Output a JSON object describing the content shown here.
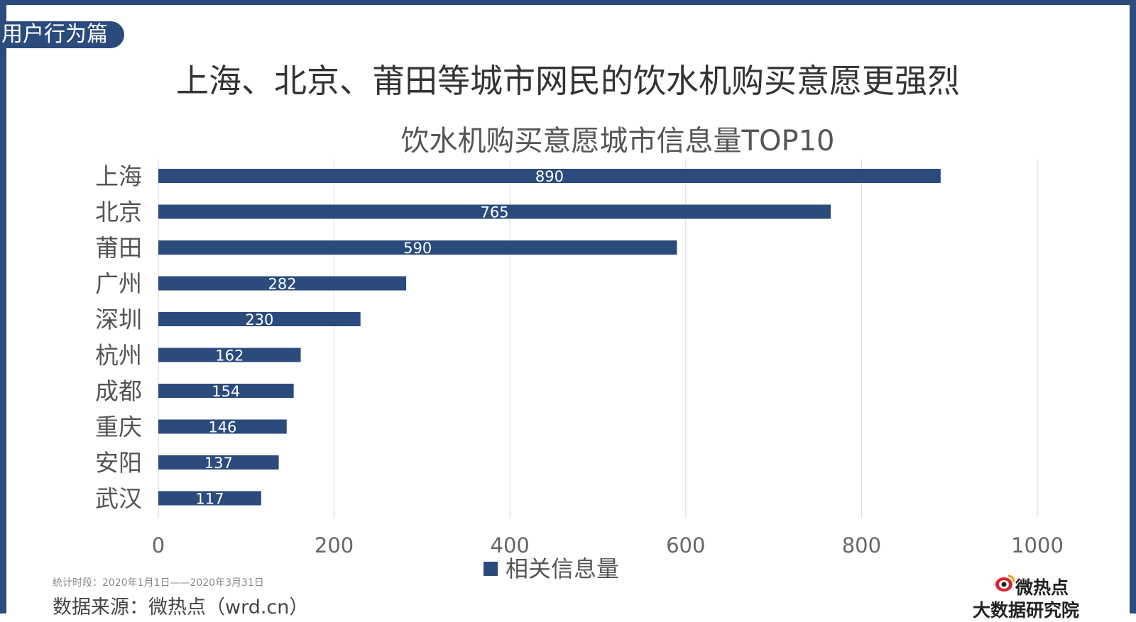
{
  "section_tab": "用户行为篇",
  "page_title": "上海、北京、莆田等城市网民的饮水机购买意愿更强烈",
  "chart_data": {
    "type": "bar",
    "orientation": "horizontal",
    "title": "饮水机购买意愿城市信息量TOP10",
    "categories": [
      "上海",
      "北京",
      "莆田",
      "广州",
      "深圳",
      "杭州",
      "成都",
      "重庆",
      "安阳",
      "武汉"
    ],
    "series": [
      {
        "name": "相关信息量",
        "values": [
          890,
          765,
          590,
          282,
          230,
          162,
          154,
          146,
          137,
          117
        ]
      }
    ],
    "xlim": [
      0,
      1000
    ],
    "xticks": [
      0,
      200,
      400,
      600,
      800,
      1000
    ],
    "grid": "vertical",
    "legend": "bottom",
    "data_labels": true,
    "bar_color": "#2b4b7c"
  },
  "footer": {
    "period": "统计时段：2020年1月1日——2020年3月31日",
    "source": "数据来源：微热点（wrd.cn）"
  },
  "logo": {
    "name": "微热点",
    "subtitle": "大数据研究院"
  },
  "colors": {
    "frame": "#2b4b7c",
    "bar": "#2b4b7c",
    "grid": "#d9d9d9"
  }
}
